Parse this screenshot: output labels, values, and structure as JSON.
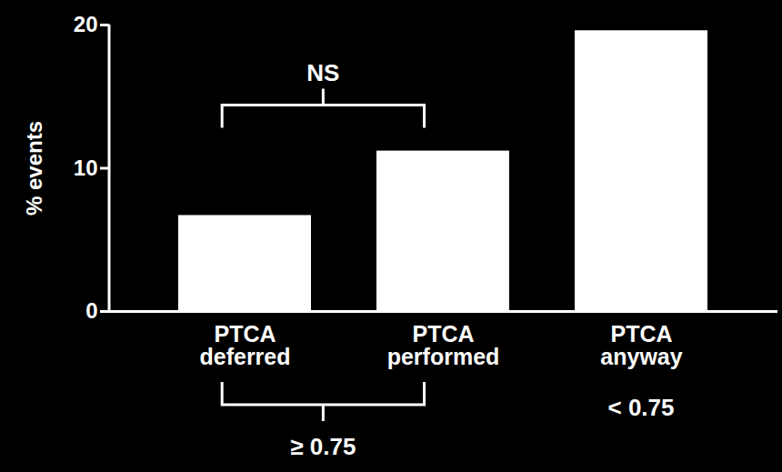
{
  "chart_data": {
    "type": "bar",
    "y_label": "% events",
    "categories": [
      "PTCA\ndeferred",
      "PTCA\nperformed",
      "PTCA\nanyway"
    ],
    "values": [
      6.7,
      11.2,
      19.6
    ],
    "color": "#ffffff",
    "ylim": [
      0,
      20
    ],
    "yticks": [
      0,
      10,
      20
    ],
    "grid": false,
    "annotations": [
      {
        "text": "NS",
        "categories": [
          "PTCA\ndeferred",
          "PTCA\nperformed"
        ],
        "side": "above"
      },
      {
        "text": "≥ 0.75",
        "categories": [
          "PTCA\ndeferred",
          "PTCA\nperformed"
        ],
        "side": "below"
      },
      {
        "text": "< 0.75",
        "categories": [
          "PTCA\nanyway"
        ],
        "side": "below"
      }
    ]
  }
}
